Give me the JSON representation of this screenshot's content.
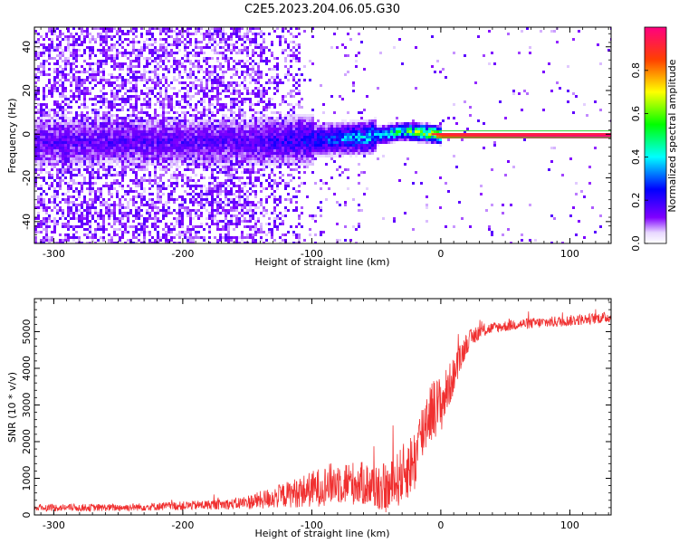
{
  "title": "C2E5.2023.204.06.05.G30",
  "chart_data": [
    {
      "type": "heatmap",
      "xlabel": "Height of straight line (km)",
      "ylabel": "Frequency (Hz)",
      "xlim": [
        -315,
        132
      ],
      "ylim": [
        -50,
        49
      ],
      "xticks": [
        -300,
        -200,
        -100,
        0,
        100
      ],
      "yticks": [
        -40,
        -20,
        0,
        20,
        40
      ],
      "colorbar": {
        "label": "Normalized spectral amplitude",
        "range": [
          0.0,
          1.0
        ],
        "ticks": [
          "0.0",
          "0.2",
          "0.4",
          "0.6",
          "0.8"
        ],
        "tick_values": [
          0.0,
          0.2,
          0.4,
          0.6,
          0.8
        ],
        "colors": [
          "#ffffff",
          "#e0c8ff",
          "#8000ff",
          "#0000ff",
          "#00ffff",
          "#00ff00",
          "#ffff00",
          "#ff8000",
          "#ff0000",
          "#ff0080"
        ]
      },
      "profile": {
        "description_ridge_x": [
          -150,
          -100,
          -60,
          -30,
          -10,
          0,
          20,
          60,
          132
        ],
        "ridge_freq": [
          -3,
          -2,
          -1,
          2,
          1,
          0,
          0,
          0,
          0
        ],
        "ridge_amplitude": [
          0.2,
          0.3,
          0.45,
          0.6,
          0.75,
          0.85,
          0.9,
          0.95,
          1.0
        ]
      }
    },
    {
      "type": "line",
      "xlabel": "Height of straight line (km)",
      "ylabel": "SNR (10 * v/v)",
      "xlim": [
        -315,
        132
      ],
      "ylim": [
        0,
        5900
      ],
      "xticks": [
        -300,
        -200,
        -100,
        0,
        100
      ],
      "yticks": [
        0,
        1000,
        2000,
        3000,
        4000,
        5000
      ],
      "color": "#f03030",
      "series": [
        {
          "x": [
            -315,
            -250,
            -200,
            -160,
            -140,
            -120,
            -100,
            -80,
            -60,
            -40,
            -20,
            -10,
            0,
            10,
            20,
            30,
            40,
            60,
            80,
            100,
            132
          ],
          "y": [
            200,
            200,
            250,
            300,
            400,
            550,
            700,
            900,
            850,
            700,
            1500,
            2800,
            3000,
            3800,
            4700,
            5000,
            5100,
            5200,
            5250,
            5300,
            5400
          ],
          "noise": [
            100,
            100,
            120,
            150,
            250,
            350,
            500,
            600,
            600,
            700,
            900,
            900,
            800,
            500,
            300,
            200,
            150,
            150,
            150,
            150,
            150
          ]
        }
      ]
    }
  ]
}
